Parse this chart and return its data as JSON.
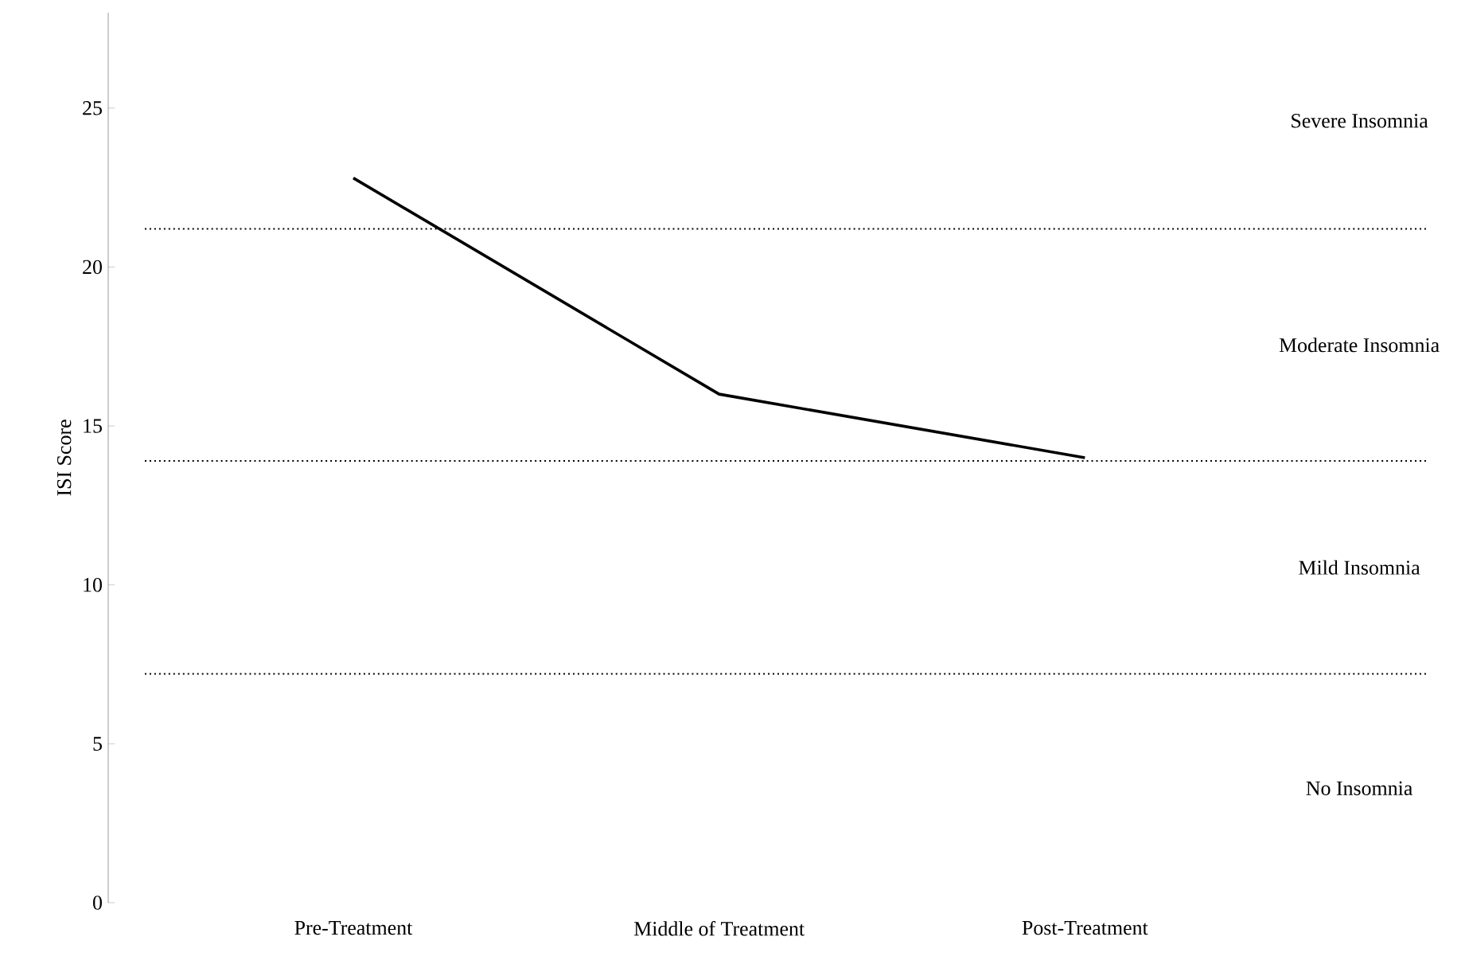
{
  "chart_data": {
    "type": "line",
    "ylabel": "ISI Score",
    "categories": [
      "Pre-Treatment",
      "Middle of Treatment",
      "Post-Treatment"
    ],
    "series": [
      {
        "color": "#000000",
        "values": [
          22.8,
          16.0,
          14.0
        ]
      }
    ],
    "ylim": [
      0,
      28
    ],
    "yticks": [
      0,
      5,
      10,
      15,
      20,
      25
    ],
    "grid": false,
    "marker": "none",
    "line_style": "solid",
    "ref_lines": [
      {
        "axis": "y",
        "value": 21.2,
        "color": "#000000",
        "line_style": "dotted"
      },
      {
        "axis": "y",
        "value": 13.9,
        "color": "#000000",
        "line_style": "dotted"
      },
      {
        "axis": "y",
        "value": 7.2,
        "color": "#000000",
        "line_style": "dotted"
      }
    ],
    "annotations": [
      "Severe Insomnia",
      "Moderate Insomnia",
      "Mild Insomnia",
      "No Insomnia"
    ]
  }
}
